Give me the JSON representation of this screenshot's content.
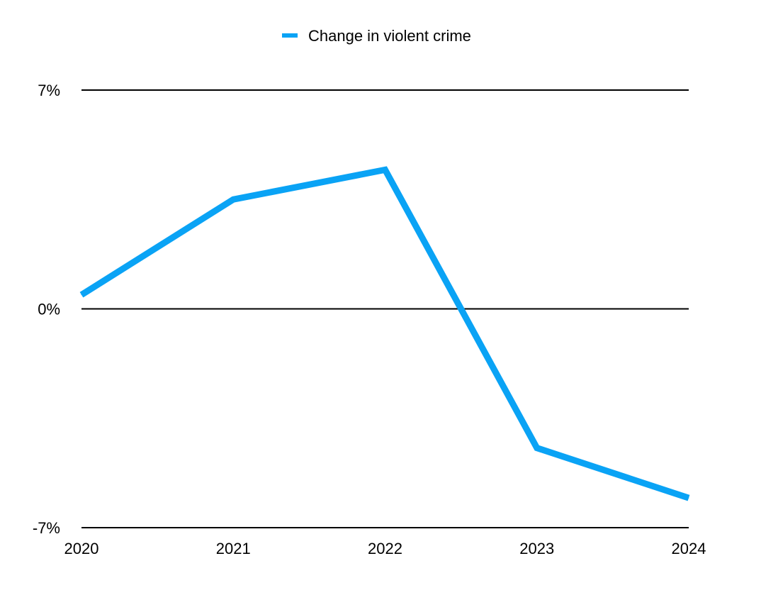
{
  "chart_data": {
    "type": "line",
    "title": "",
    "xlabel": "",
    "ylabel": "",
    "categories": [
      "2020",
      "2021",
      "2022",
      "2023",
      "2024"
    ],
    "series": [
      {
        "name": "Change in violent crime",
        "color": "#0aa3f5",
        "values": [
          0.45,
          3.5,
          4.45,
          -4.45,
          -6.05
        ]
      }
    ],
    "y_ticks": [
      {
        "value": 7,
        "label": "7%"
      },
      {
        "value": 0,
        "label": "0%"
      },
      {
        "value": -7,
        "label": "-7%"
      }
    ],
    "ylim": [
      -7,
      7
    ],
    "grid": true,
    "legend_position": "top-center"
  }
}
